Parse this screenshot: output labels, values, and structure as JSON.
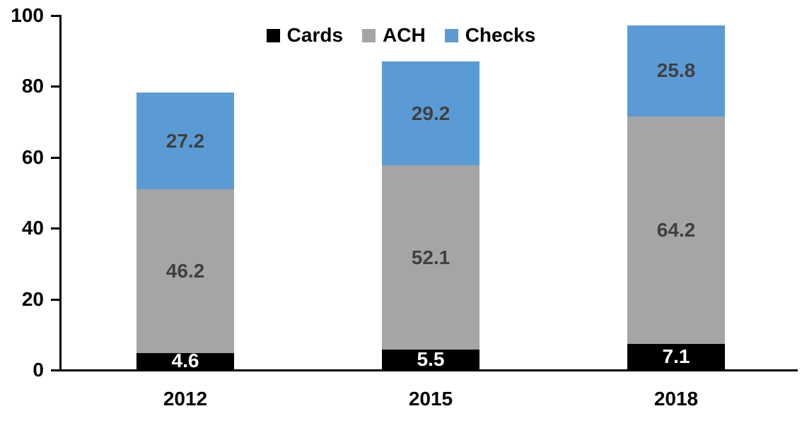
{
  "chart_data": {
    "type": "bar",
    "stacked": true,
    "title": "",
    "xlabel": "",
    "ylabel": "",
    "categories": [
      "2012",
      "2015",
      "2018"
    ],
    "series": [
      {
        "name": "Cards",
        "color": "#000000",
        "label_color": "#FFFFFF",
        "values": [
          4.6,
          5.5,
          7.1
        ]
      },
      {
        "name": "ACH",
        "color": "#A5A5A5",
        "label_color": "#404040",
        "values": [
          46.2,
          52.1,
          64.2
        ]
      },
      {
        "name": "Checks",
        "color": "#5B9BD5",
        "label_color": "#404040",
        "values": [
          27.2,
          29.2,
          25.8
        ]
      }
    ],
    "totals": [
      78.0,
      86.8,
      97.1
    ],
    "ylim": [
      0,
      100
    ],
    "yticks": [
      0,
      20,
      40,
      60,
      80,
      100
    ],
    "grid": false,
    "legend_position": "top-center",
    "axis_color": "#000000"
  }
}
